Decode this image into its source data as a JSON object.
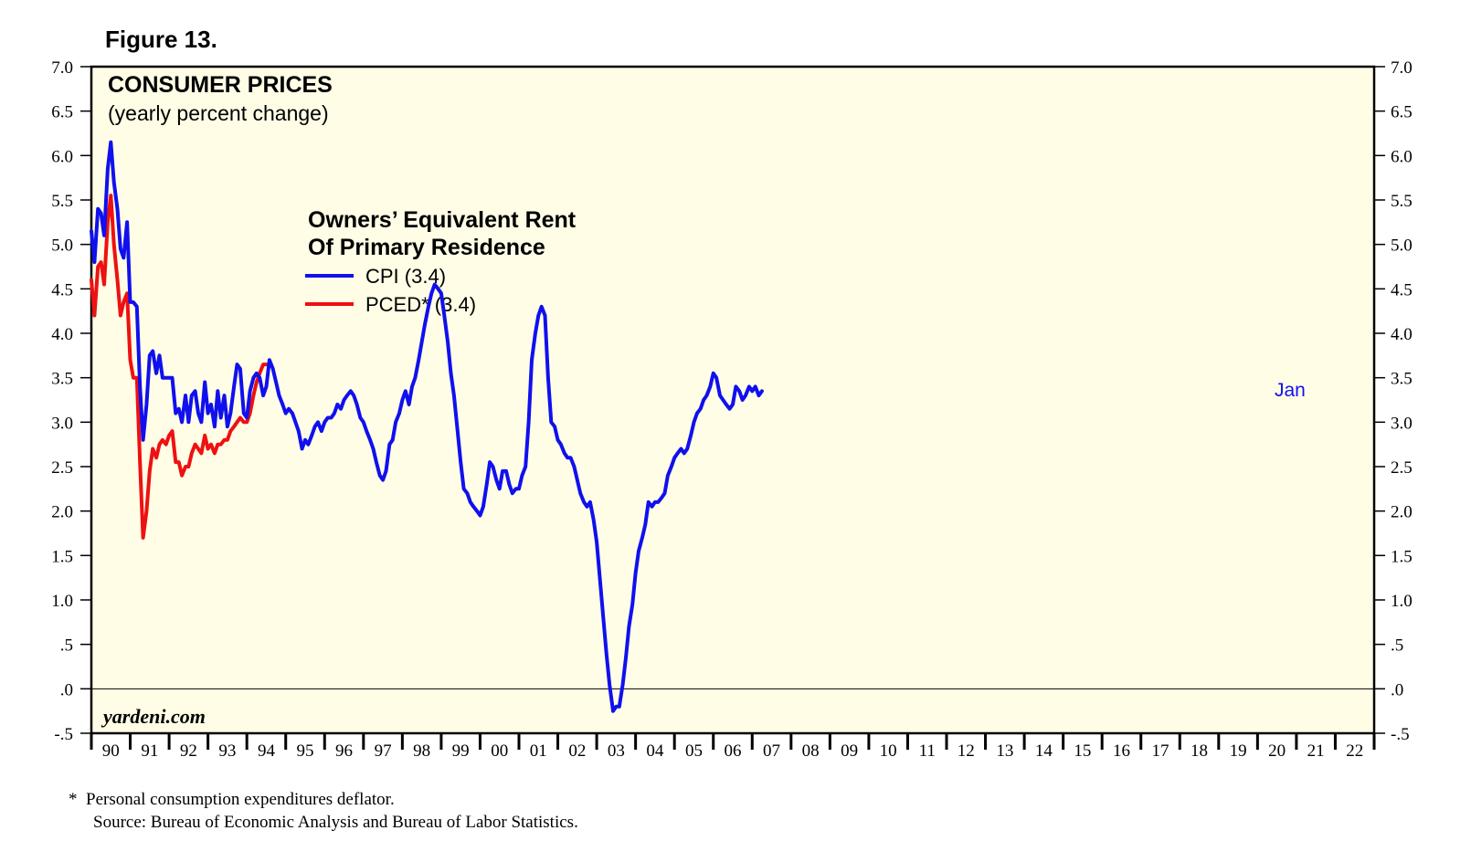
{
  "figure_label": "Figure 13.",
  "watermark": "yardeni.com",
  "footnote": "*  Personal consumption expenditures deflator.",
  "source": "Source: Bureau of Economic Analysis and Bureau of Labor Statistics.",
  "colors": {
    "plot_bg": "#fffde6",
    "cpi": "#1010ee",
    "pced": "#ee1111",
    "axis": "#000000",
    "latest_label": "#1010ee"
  },
  "chart_data": {
    "type": "line",
    "title": "CONSUMER PRICES",
    "subtitle": "(yearly percent change)",
    "legend_title_line1": "Owners’ Equivalent Rent",
    "legend_title_line2": "Of Primary Residence",
    "xlabel": "",
    "ylabel": "",
    "xlim": [
      1990,
      2023
    ],
    "ylim": [
      -0.5,
      7.0
    ],
    "y_ticks": [
      7.0,
      6.5,
      6.0,
      5.5,
      5.0,
      4.5,
      4.0,
      3.5,
      3.0,
      2.5,
      2.0,
      1.5,
      1.0,
      0.5,
      0.0,
      -0.5
    ],
    "y_tick_labels": [
      "7.0",
      "6.5",
      "6.0",
      "5.5",
      "5.0",
      "4.5",
      "4.0",
      "3.5",
      "3.0",
      "2.5",
      "2.0",
      "1.5",
      "1.0",
      ".5",
      ".0",
      "-.5"
    ],
    "x_tick_labels": [
      "90",
      "91",
      "92",
      "93",
      "94",
      "95",
      "96",
      "97",
      "98",
      "99",
      "00",
      "01",
      "02",
      "03",
      "04",
      "05",
      "06",
      "07",
      "08",
      "09",
      "10",
      "11",
      "12",
      "13",
      "14",
      "15",
      "16",
      "17",
      "18",
      "19",
      "20",
      "21",
      "22"
    ],
    "zero_line": 0.0,
    "latest_label": "Jan",
    "series": [
      {
        "name": "CPI (3.4)",
        "key": "cpi",
        "points": [
          [
            1990.0,
            5.15
          ],
          [
            1990.08,
            4.8
          ],
          [
            1990.17,
            5.4
          ],
          [
            1990.25,
            5.35
          ],
          [
            1990.33,
            5.1
          ],
          [
            1990.42,
            5.85
          ],
          [
            1990.5,
            6.15
          ],
          [
            1990.58,
            5.7
          ],
          [
            1990.67,
            5.4
          ],
          [
            1990.75,
            4.95
          ],
          [
            1990.83,
            4.85
          ],
          [
            1990.92,
            5.25
          ],
          [
            1991.0,
            4.35
          ],
          [
            1991.08,
            4.35
          ],
          [
            1991.17,
            4.3
          ],
          [
            1991.25,
            3.4
          ],
          [
            1991.33,
            2.8
          ],
          [
            1991.42,
            3.2
          ],
          [
            1991.5,
            3.75
          ],
          [
            1991.58,
            3.8
          ],
          [
            1991.67,
            3.55
          ],
          [
            1991.75,
            3.75
          ],
          [
            1991.83,
            3.5
          ],
          [
            1991.92,
            3.5
          ],
          [
            1992.0,
            3.5
          ],
          [
            1992.08,
            3.5
          ],
          [
            1992.17,
            3.1
          ],
          [
            1992.25,
            3.15
          ],
          [
            1992.33,
            3.0
          ],
          [
            1992.42,
            3.3
          ],
          [
            1992.5,
            3.0
          ],
          [
            1992.58,
            3.3
          ],
          [
            1992.67,
            3.35
          ],
          [
            1992.75,
            3.1
          ],
          [
            1992.83,
            3.0
          ],
          [
            1992.92,
            3.45
          ],
          [
            1993.0,
            3.1
          ],
          [
            1993.08,
            3.2
          ],
          [
            1993.17,
            2.95
          ],
          [
            1993.25,
            3.35
          ],
          [
            1993.33,
            3.05
          ],
          [
            1993.42,
            3.3
          ],
          [
            1993.5,
            2.95
          ],
          [
            1993.58,
            3.1
          ],
          [
            1993.67,
            3.4
          ],
          [
            1993.75,
            3.65
          ],
          [
            1993.83,
            3.6
          ],
          [
            1993.92,
            3.1
          ],
          [
            1994.0,
            3.05
          ],
          [
            1994.08,
            3.35
          ],
          [
            1994.17,
            3.5
          ],
          [
            1994.25,
            3.55
          ],
          [
            1994.33,
            3.5
          ],
          [
            1994.42,
            3.3
          ],
          [
            1994.5,
            3.4
          ],
          [
            1994.58,
            3.7
          ],
          [
            1994.67,
            3.6
          ],
          [
            1994.75,
            3.45
          ],
          [
            1994.83,
            3.3
          ],
          [
            1994.92,
            3.2
          ],
          [
            1995.0,
            3.1
          ],
          [
            1995.08,
            3.15
          ],
          [
            1995.17,
            3.1
          ],
          [
            1995.25,
            3.0
          ],
          [
            1995.33,
            2.9
          ],
          [
            1995.42,
            2.7
          ],
          [
            1995.5,
            2.8
          ],
          [
            1995.58,
            2.75
          ],
          [
            1995.67,
            2.85
          ],
          [
            1995.75,
            2.95
          ],
          [
            1995.83,
            3.0
          ],
          [
            1995.92,
            2.9
          ],
          [
            1996.0,
            3.0
          ],
          [
            1996.08,
            3.05
          ],
          [
            1996.17,
            3.05
          ],
          [
            1996.25,
            3.1
          ],
          [
            1996.33,
            3.2
          ],
          [
            1996.42,
            3.15
          ],
          [
            1996.5,
            3.25
          ],
          [
            1996.58,
            3.3
          ],
          [
            1996.67,
            3.35
          ],
          [
            1996.75,
            3.3
          ],
          [
            1996.83,
            3.2
          ],
          [
            1996.92,
            3.05
          ],
          [
            1997.0,
            3.0
          ],
          [
            1997.08,
            2.9
          ],
          [
            1997.17,
            2.8
          ],
          [
            1997.25,
            2.7
          ],
          [
            1997.33,
            2.55
          ],
          [
            1997.42,
            2.4
          ],
          [
            1997.5,
            2.35
          ],
          [
            1997.58,
            2.45
          ],
          [
            1997.67,
            2.75
          ],
          [
            1997.75,
            2.8
          ],
          [
            1997.83,
            3.0
          ],
          [
            1997.92,
            3.1
          ],
          [
            1998.0,
            3.25
          ],
          [
            1998.08,
            3.35
          ],
          [
            1998.17,
            3.2
          ],
          [
            1998.25,
            3.4
          ],
          [
            1998.33,
            3.5
          ],
          [
            1998.42,
            3.7
          ],
          [
            1998.5,
            3.9
          ],
          [
            1998.58,
            4.1
          ],
          [
            1998.67,
            4.3
          ],
          [
            1998.75,
            4.45
          ],
          [
            1998.83,
            4.55
          ],
          [
            1998.92,
            4.5
          ],
          [
            1999.0,
            4.45
          ],
          [
            1999.08,
            4.2
          ],
          [
            1999.17,
            3.9
          ],
          [
            1999.25,
            3.55
          ],
          [
            1999.33,
            3.3
          ],
          [
            1999.42,
            2.9
          ],
          [
            1999.5,
            2.55
          ],
          [
            1999.58,
            2.25
          ],
          [
            1999.67,
            2.2
          ],
          [
            1999.75,
            2.1
          ],
          [
            1999.83,
            2.05
          ],
          [
            1999.92,
            2.0
          ],
          [
            2000.0,
            1.95
          ],
          [
            2000.08,
            2.05
          ],
          [
            2000.17,
            2.3
          ],
          [
            2000.25,
            2.55
          ],
          [
            2000.33,
            2.5
          ],
          [
            2000.42,
            2.35
          ],
          [
            2000.5,
            2.25
          ],
          [
            2000.58,
            2.45
          ],
          [
            2000.67,
            2.45
          ],
          [
            2000.75,
            2.3
          ],
          [
            2000.83,
            2.2
          ],
          [
            2000.92,
            2.25
          ],
          [
            2001.0,
            2.25
          ],
          [
            2001.08,
            2.4
          ],
          [
            2001.17,
            2.5
          ],
          [
            2001.25,
            3.0
          ],
          [
            2001.33,
            3.7
          ],
          [
            2001.42,
            4.0
          ],
          [
            2001.5,
            4.2
          ],
          [
            2001.58,
            4.3
          ],
          [
            2001.67,
            4.2
          ],
          [
            2001.75,
            3.5
          ],
          [
            2001.83,
            3.0
          ],
          [
            2001.92,
            2.95
          ],
          [
            2002.0,
            2.8
          ],
          [
            2002.08,
            2.75
          ],
          [
            2002.17,
            2.65
          ],
          [
            2002.25,
            2.6
          ],
          [
            2002.33,
            2.6
          ],
          [
            2002.42,
            2.5
          ],
          [
            2002.5,
            2.35
          ],
          [
            2002.58,
            2.2
          ],
          [
            2002.67,
            2.1
          ],
          [
            2002.75,
            2.05
          ],
          [
            2002.83,
            2.1
          ],
          [
            2002.92,
            1.9
          ],
          [
            2003.0,
            1.65
          ],
          [
            2003.08,
            1.25
          ],
          [
            2003.17,
            0.8
          ],
          [
            2003.25,
            0.4
          ],
          [
            2003.33,
            0.05
          ],
          [
            2003.42,
            -0.25
          ],
          [
            2003.5,
            -0.2
          ],
          [
            2003.58,
            -0.2
          ],
          [
            2003.67,
            0.05
          ],
          [
            2003.75,
            0.35
          ],
          [
            2003.83,
            0.7
          ],
          [
            2003.92,
            0.95
          ],
          [
            2004.0,
            1.3
          ],
          [
            2004.08,
            1.55
          ],
          [
            2004.17,
            1.7
          ],
          [
            2004.25,
            1.85
          ],
          [
            2004.33,
            2.1
          ],
          [
            2004.42,
            2.05
          ],
          [
            2004.5,
            2.1
          ],
          [
            2004.58,
            2.1
          ],
          [
            2004.67,
            2.15
          ],
          [
            2004.75,
            2.2
          ],
          [
            2004.83,
            2.4
          ],
          [
            2004.92,
            2.5
          ],
          [
            2005.0,
            2.6
          ],
          [
            2005.08,
            2.65
          ],
          [
            2005.17,
            2.7
          ],
          [
            2005.25,
            2.65
          ],
          [
            2005.33,
            2.7
          ],
          [
            2005.42,
            2.85
          ],
          [
            2005.5,
            3.0
          ],
          [
            2005.58,
            3.1
          ],
          [
            2005.67,
            3.15
          ],
          [
            2005.75,
            3.25
          ],
          [
            2005.83,
            3.3
          ],
          [
            2005.92,
            3.4
          ],
          [
            2006.0,
            3.55
          ],
          [
            2006.08,
            3.5
          ],
          [
            2006.17,
            3.3
          ],
          [
            2006.25,
            3.25
          ],
          [
            2006.33,
            3.2
          ],
          [
            2006.42,
            3.15
          ],
          [
            2006.5,
            3.2
          ],
          [
            2006.58,
            3.4
          ],
          [
            2006.67,
            3.35
          ],
          [
            2006.75,
            3.25
          ],
          [
            2006.83,
            3.3
          ],
          [
            2006.92,
            3.4
          ],
          [
            2007.0,
            3.35
          ],
          [
            2007.08,
            3.4
          ],
          [
            2007.17,
            3.3
          ],
          [
            2007.25,
            3.35
          ]
        ]
      },
      {
        "name": "PCED* (3.4)",
        "key": "pced",
        "points": [
          [
            1990.0,
            4.6
          ],
          [
            1990.08,
            4.2
          ],
          [
            1990.17,
            4.75
          ],
          [
            1990.25,
            4.8
          ],
          [
            1990.33,
            4.55
          ],
          [
            1990.42,
            5.25
          ],
          [
            1990.5,
            5.55
          ],
          [
            1990.58,
            5.0
          ],
          [
            1990.67,
            4.6
          ],
          [
            1990.75,
            4.2
          ],
          [
            1990.83,
            4.35
          ],
          [
            1990.92,
            4.45
          ],
          [
            1991.0,
            3.7
          ],
          [
            1991.08,
            3.5
          ],
          [
            1991.17,
            3.5
          ],
          [
            1991.25,
            2.55
          ],
          [
            1991.33,
            1.7
          ],
          [
            1991.42,
            2.0
          ],
          [
            1991.5,
            2.45
          ],
          [
            1991.58,
            2.7
          ],
          [
            1991.67,
            2.6
          ],
          [
            1991.75,
            2.75
          ],
          [
            1991.83,
            2.8
          ],
          [
            1991.92,
            2.75
          ],
          [
            1992.0,
            2.85
          ],
          [
            1992.08,
            2.9
          ],
          [
            1992.17,
            2.55
          ],
          [
            1992.25,
            2.55
          ],
          [
            1992.33,
            2.4
          ],
          [
            1992.42,
            2.5
          ],
          [
            1992.5,
            2.5
          ],
          [
            1992.58,
            2.65
          ],
          [
            1992.67,
            2.75
          ],
          [
            1992.75,
            2.7
          ],
          [
            1992.83,
            2.65
          ],
          [
            1992.92,
            2.85
          ],
          [
            1993.0,
            2.7
          ],
          [
            1993.08,
            2.75
          ],
          [
            1993.17,
            2.65
          ],
          [
            1993.25,
            2.75
          ],
          [
            1993.33,
            2.75
          ],
          [
            1993.42,
            2.8
          ],
          [
            1993.5,
            2.8
          ],
          [
            1993.58,
            2.9
          ],
          [
            1993.67,
            2.95
          ],
          [
            1993.75,
            3.0
          ],
          [
            1993.83,
            3.05
          ],
          [
            1993.92,
            3.0
          ],
          [
            1994.0,
            3.0
          ],
          [
            1994.08,
            3.1
          ],
          [
            1994.17,
            3.3
          ],
          [
            1994.25,
            3.45
          ],
          [
            1994.33,
            3.55
          ],
          [
            1994.42,
            3.65
          ],
          [
            1994.5,
            3.65
          ]
        ]
      }
    ]
  }
}
